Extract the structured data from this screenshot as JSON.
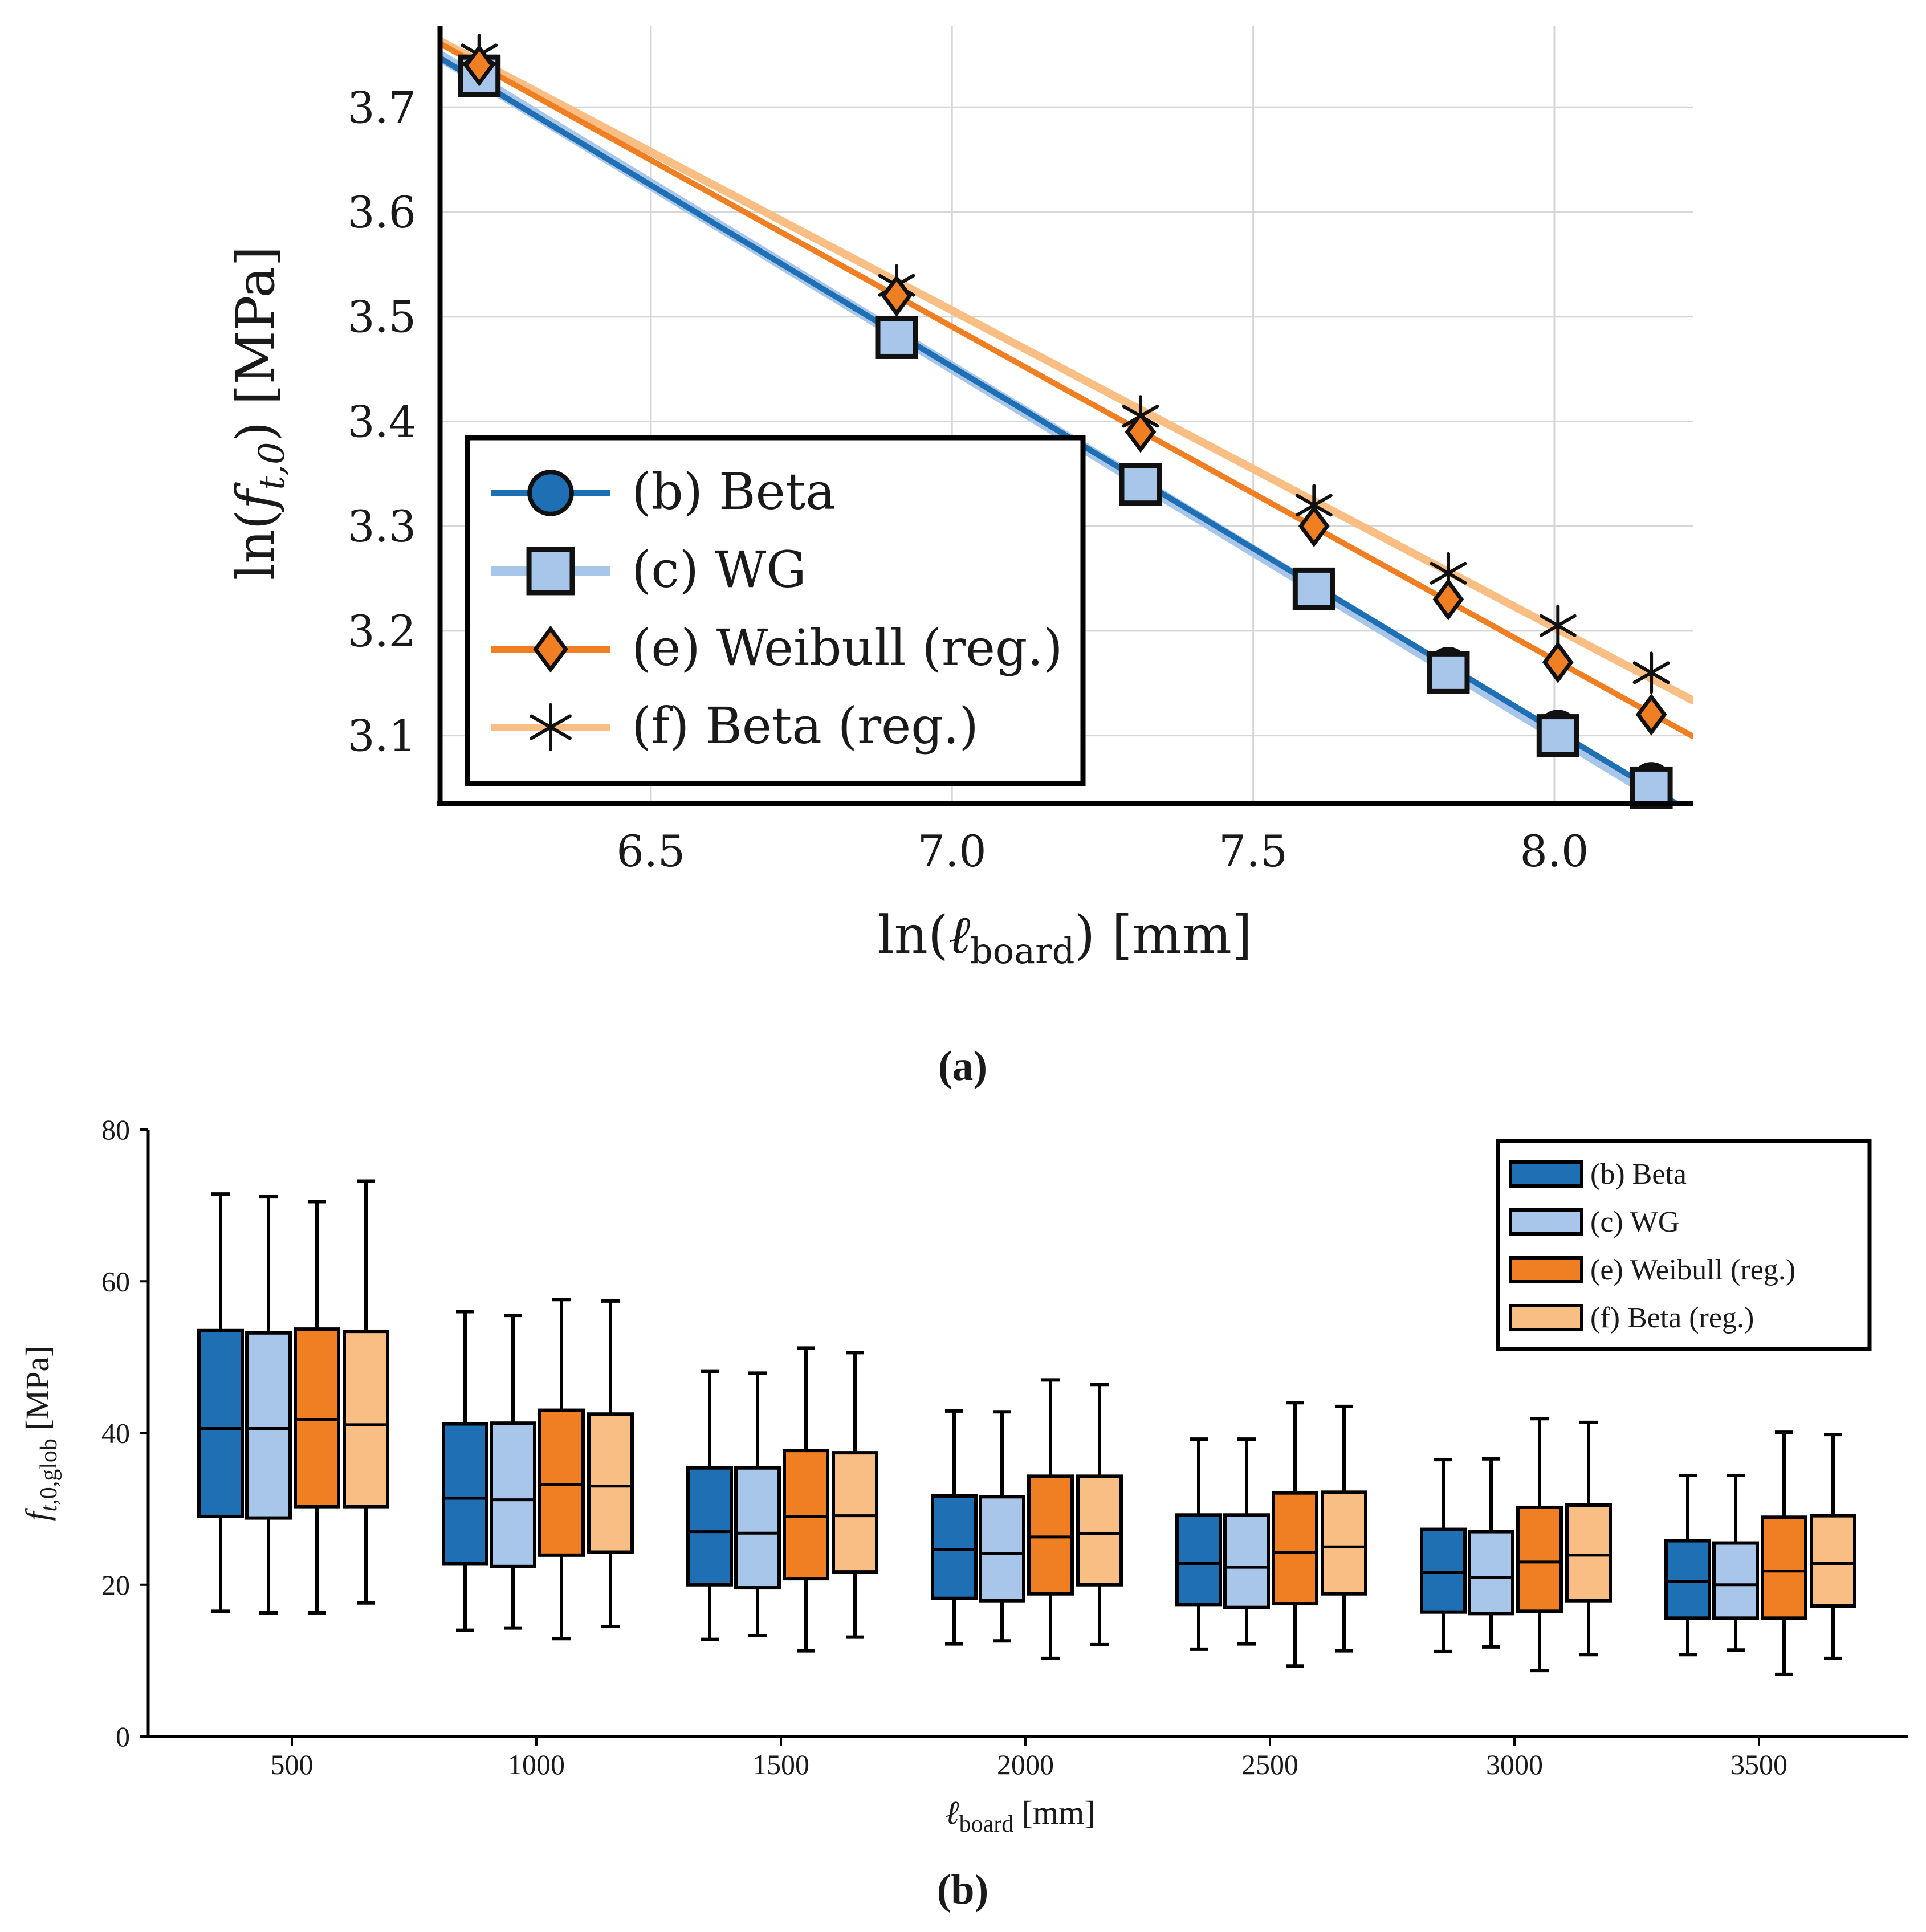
{
  "chart_data": [
    {
      "type": "line",
      "caption": "(a)",
      "xlabel_prefix": "ln(",
      "xlabel_symbol": "ℓ",
      "xlabel_sub": "board",
      "xlabel_suffix": ") [mm]",
      "ylabel_prefix": "ln(",
      "ylabel_symbol": "f",
      "ylabel_sub": "t,0",
      "ylabel_suffix": ") [MPa]",
      "xlim": [
        6.15,
        8.23
      ],
      "ylim": [
        3.035,
        3.778
      ],
      "xticks": [
        6.5,
        7.0,
        7.5,
        8.0
      ],
      "xtick_labels": [
        "6.5",
        "7.0",
        "7.5",
        "8.0"
      ],
      "yticks": [
        3.1,
        3.2,
        3.3,
        3.4,
        3.5,
        3.6,
        3.7
      ],
      "ytick_labels": [
        "3.1",
        "3.2",
        "3.3",
        "3.4",
        "3.5",
        "3.6",
        "3.7"
      ],
      "grid": true,
      "legend_position": "bottom-left",
      "x": [
        6.215,
        6.908,
        7.313,
        7.601,
        7.824,
        8.006,
        8.161
      ],
      "series": [
        {
          "name": "(b) Beta",
          "color": "#1f6fb4",
          "marker": "circle",
          "values": [
            3.73,
            3.48,
            3.34,
            3.24,
            3.165,
            3.105,
            3.055
          ]
        },
        {
          "name": "(c) WG",
          "color": "#a8c6ea",
          "marker": "square",
          "values": [
            3.73,
            3.48,
            3.34,
            3.24,
            3.16,
            3.1,
            3.05
          ]
        },
        {
          "name": "(e) Weibull (reg.)",
          "color": "#f07f23",
          "marker": "diamond",
          "values": [
            3.74,
            3.52,
            3.39,
            3.3,
            3.23,
            3.17,
            3.12
          ]
        },
        {
          "name": "(f) Beta (reg.)",
          "color": "#f9be83",
          "marker": "star",
          "values": [
            3.75,
            3.53,
            3.405,
            3.32,
            3.255,
            3.205,
            3.16
          ]
        }
      ]
    },
    {
      "type": "box",
      "caption": "(b)",
      "xlabel_symbol": "ℓ",
      "xlabel_sub": "board",
      "xlabel_suffix": " [mm]",
      "ylabel_symbol": "f",
      "ylabel_sub_italic": "t",
      "ylabel_sub_rest": ",0,glob",
      "ylabel_suffix": " [MPa]",
      "ylim": [
        0,
        80
      ],
      "yticks": [
        0,
        20,
        40,
        60,
        80
      ],
      "ytick_labels": [
        "0",
        "20",
        "40",
        "60",
        "80"
      ],
      "categories": [
        "500",
        "1000",
        "1500",
        "2000",
        "2500",
        "3000",
        "3500"
      ],
      "legend_position": "top-right",
      "series": [
        {
          "name": "(b) Beta",
          "color": "#1f6fb4",
          "whisker_low": [
            16.5,
            14.0,
            12.8,
            12.2,
            11.5,
            11.2,
            10.8
          ],
          "q1": [
            29.0,
            22.8,
            20.0,
            18.2,
            17.4,
            16.4,
            15.6
          ],
          "median": [
            40.6,
            31.4,
            27.0,
            24.6,
            22.8,
            21.6,
            20.4
          ],
          "q3": [
            53.5,
            41.2,
            35.4,
            31.7,
            29.2,
            27.3,
            25.8
          ],
          "whisker_high": [
            71.5,
            56.0,
            48.1,
            42.9,
            39.2,
            36.5,
            34.4
          ]
        },
        {
          "name": "(c) WG",
          "color": "#a8c6ea",
          "whisker_low": [
            16.3,
            14.3,
            13.3,
            12.6,
            12.2,
            11.8,
            11.4
          ],
          "q1": [
            28.8,
            22.4,
            19.6,
            17.9,
            17.0,
            16.2,
            15.6
          ],
          "median": [
            40.6,
            31.2,
            26.8,
            24.1,
            22.3,
            21.0,
            20.0
          ],
          "q3": [
            53.2,
            41.3,
            35.4,
            31.6,
            29.2,
            27.0,
            25.5
          ],
          "whisker_high": [
            71.2,
            55.5,
            47.9,
            42.8,
            39.2,
            36.6,
            34.4
          ]
        },
        {
          "name": "(e) Weibull (reg.)",
          "color": "#f07f23",
          "whisker_low": [
            16.3,
            12.9,
            11.3,
            10.3,
            9.3,
            8.7,
            8.2
          ],
          "q1": [
            30.3,
            23.9,
            20.8,
            18.8,
            17.5,
            16.5,
            15.6
          ],
          "median": [
            41.8,
            33.2,
            29.0,
            26.3,
            24.3,
            23.0,
            21.8
          ],
          "q3": [
            53.7,
            43.0,
            37.7,
            34.3,
            32.1,
            30.2,
            28.9
          ],
          "whisker_high": [
            70.5,
            57.6,
            51.2,
            47.0,
            44.0,
            41.9,
            40.1
          ]
        },
        {
          "name": "(f) Beta (reg.)",
          "color": "#f9be83",
          "whisker_low": [
            17.6,
            14.5,
            13.1,
            12.1,
            11.3,
            10.8,
            10.3
          ],
          "q1": [
            30.3,
            24.3,
            21.7,
            20.0,
            18.8,
            17.9,
            17.2
          ],
          "median": [
            41.1,
            33.0,
            29.1,
            26.7,
            25.0,
            23.9,
            22.8
          ],
          "q3": [
            53.4,
            42.5,
            37.4,
            34.3,
            32.2,
            30.5,
            29.1
          ],
          "whisker_high": [
            73.2,
            57.4,
            50.6,
            46.4,
            43.5,
            41.4,
            39.8
          ]
        }
      ]
    }
  ]
}
